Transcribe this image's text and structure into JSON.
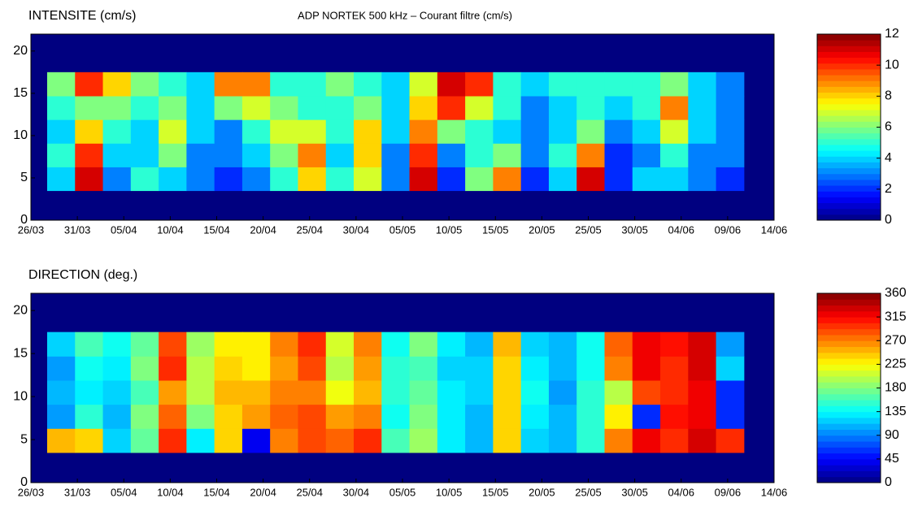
{
  "chart_data": [
    {
      "type": "heatmap",
      "title": "INTENSITE (cm/s)",
      "subtitle": "ADP NORTEK 500 kHz – Courant filtre (cm/s)",
      "xlim": [
        0,
        80
      ],
      "xticks": [
        {
          "value": 0,
          "label": "26/03"
        },
        {
          "value": 5,
          "label": "31/03"
        },
        {
          "value": 10,
          "label": "05/04"
        },
        {
          "value": 15,
          "label": "10/04"
        },
        {
          "value": 20,
          "label": "15/04"
        },
        {
          "value": 25,
          "label": "20/04"
        },
        {
          "value": 30,
          "label": "25/04"
        },
        {
          "value": 35,
          "label": "30/04"
        },
        {
          "value": 40,
          "label": "05/05"
        },
        {
          "value": 45,
          "label": "10/05"
        },
        {
          "value": 50,
          "label": "15/05"
        },
        {
          "value": 55,
          "label": "20/05"
        },
        {
          "value": 60,
          "label": "25/05"
        },
        {
          "value": 65,
          "label": "30/05"
        },
        {
          "value": 70,
          "label": "04/06"
        },
        {
          "value": 75,
          "label": "09/06"
        },
        {
          "value": 80,
          "label": "14/06"
        }
      ],
      "ylim": [
        0,
        22
      ],
      "yticks": [
        0,
        5,
        10,
        15,
        20
      ],
      "x": [
        3.25,
        6.25,
        9.25,
        12.25,
        15.25,
        18.25,
        21.25,
        24.25,
        27.25,
        30.25,
        33.25,
        36.25,
        39.25,
        42.25,
        45.25,
        48.25,
        51.25,
        54.25,
        57.25,
        60.25,
        63.25,
        66.25,
        69.25,
        72.25,
        75.25
      ],
      "y": [
        4.9,
        7.7,
        10.5,
        13.3,
        16.1
      ],
      "values": [
        [
          4,
          11,
          3,
          5,
          4,
          3,
          2,
          3,
          5,
          8,
          5,
          7,
          3,
          11,
          2,
          6,
          9,
          2,
          4,
          11,
          2,
          4,
          4,
          3,
          2
        ],
        [
          5,
          10,
          4,
          4,
          6,
          3,
          3,
          4,
          6,
          9,
          4,
          8,
          3,
          10,
          3,
          5,
          6,
          3,
          5,
          9,
          2,
          3,
          5,
          3,
          3
        ],
        [
          4,
          8,
          5,
          4,
          7,
          4,
          3,
          5,
          7,
          7,
          5,
          8,
          4,
          9,
          6,
          5,
          4,
          3,
          4,
          6,
          3,
          4,
          7,
          4,
          3
        ],
        [
          5,
          6,
          6,
          5,
          6,
          4,
          6,
          7,
          6,
          5,
          5,
          6,
          4,
          8,
          10,
          7,
          5,
          3,
          4,
          5,
          4,
          5,
          9,
          4,
          3
        ],
        [
          6,
          10,
          8,
          6,
          5,
          4,
          9,
          9,
          5,
          5,
          6,
          5,
          4,
          7,
          11,
          10,
          5,
          4,
          5,
          5,
          5,
          5,
          6,
          4,
          3
        ]
      ],
      "clim": [
        0,
        12
      ],
      "cticks": [
        0,
        2,
        4,
        6,
        8,
        10,
        12
      ]
    },
    {
      "type": "heatmap",
      "title": "DIRECTION (deg.)",
      "xlim": [
        0,
        80
      ],
      "xticks": [
        {
          "value": 0,
          "label": "26/03"
        },
        {
          "value": 5,
          "label": "31/03"
        },
        {
          "value": 10,
          "label": "05/04"
        },
        {
          "value": 15,
          "label": "10/04"
        },
        {
          "value": 20,
          "label": "15/04"
        },
        {
          "value": 25,
          "label": "20/04"
        },
        {
          "value": 30,
          "label": "25/04"
        },
        {
          "value": 35,
          "label": "30/04"
        },
        {
          "value": 40,
          "label": "05/05"
        },
        {
          "value": 45,
          "label": "10/05"
        },
        {
          "value": 50,
          "label": "15/05"
        },
        {
          "value": 55,
          "label": "20/05"
        },
        {
          "value": 60,
          "label": "25/05"
        },
        {
          "value": 65,
          "label": "30/05"
        },
        {
          "value": 70,
          "label": "04/06"
        },
        {
          "value": 75,
          "label": "09/06"
        },
        {
          "value": 80,
          "label": "14/06"
        }
      ],
      "ylim": [
        0,
        22
      ],
      "yticks": [
        0,
        5,
        10,
        15,
        20
      ],
      "x": [
        3.25,
        6.25,
        9.25,
        12.25,
        15.25,
        18.25,
        21.25,
        24.25,
        27.25,
        30.25,
        33.25,
        36.25,
        39.25,
        42.25,
        45.25,
        48.25,
        51.25,
        54.25,
        57.25,
        60.25,
        63.25,
        66.25,
        69.25,
        72.25,
        75.25
      ],
      "y": [
        4.9,
        7.7,
        10.5,
        13.3,
        16.1
      ],
      "values": [
        [
          250,
          240,
          120,
          170,
          300,
          130,
          240,
          40,
          270,
          290,
          280,
          300,
          160,
          190,
          130,
          110,
          240,
          120,
          110,
          150,
          270,
          320,
          300,
          330,
          300
        ],
        [
          100,
          150,
          110,
          180,
          280,
          180,
          240,
          260,
          280,
          290,
          260,
          270,
          140,
          180,
          130,
          110,
          240,
          130,
          110,
          150,
          230,
          60,
          310,
          320,
          60
        ],
        [
          110,
          130,
          120,
          160,
          260,
          200,
          250,
          250,
          270,
          270,
          220,
          250,
          150,
          170,
          130,
          120,
          240,
          140,
          100,
          150,
          200,
          290,
          300,
          320,
          60
        ],
        [
          100,
          140,
          130,
          180,
          300,
          200,
          240,
          230,
          260,
          290,
          200,
          260,
          150,
          160,
          120,
          120,
          240,
          130,
          110,
          140,
          270,
          320,
          300,
          330,
          120
        ],
        [
          120,
          160,
          140,
          170,
          290,
          190,
          230,
          230,
          270,
          300,
          210,
          270,
          140,
          180,
          130,
          110,
          250,
          120,
          110,
          140,
          280,
          320,
          310,
          330,
          100
        ]
      ],
      "clim": [
        0,
        360
      ],
      "cticks": [
        0,
        45,
        90,
        135,
        180,
        225,
        270,
        315,
        360
      ]
    }
  ]
}
